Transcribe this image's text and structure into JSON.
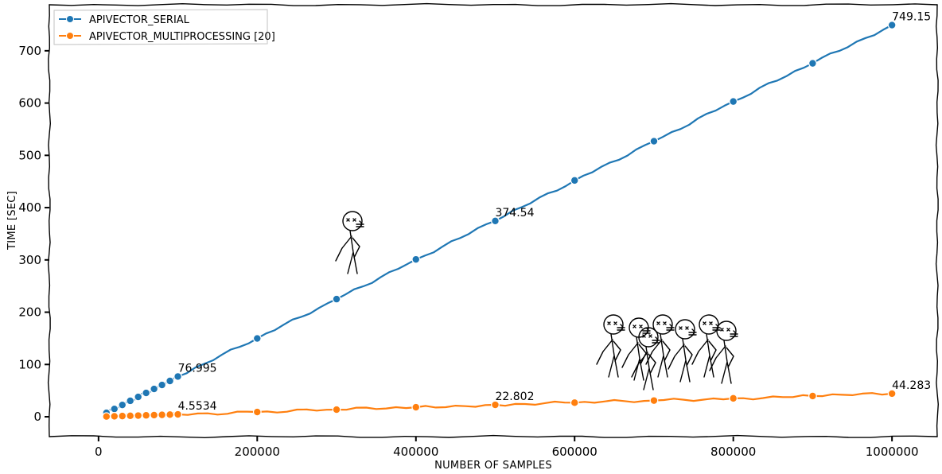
{
  "chart_data": {
    "type": "line",
    "xlabel": "NUMBER OF SAMPLES",
    "ylabel": "TIME [SEC]",
    "xlim": [
      -62000,
      1057000
    ],
    "ylim": [
      -38,
      788
    ],
    "xticks": [
      0,
      200000,
      400000,
      600000,
      800000,
      1000000
    ],
    "xtick_labels": [
      "0",
      "200000",
      "400000",
      "600000",
      "800000",
      "1000000"
    ],
    "yticks": [
      0,
      100,
      200,
      300,
      400,
      500,
      600,
      700
    ],
    "ytick_labels": [
      "0",
      "100",
      "200",
      "300",
      "400",
      "500",
      "600",
      "700"
    ],
    "grid": false,
    "legend_position": "top-left",
    "style": "xkcd",
    "x": [
      10000,
      20000,
      30000,
      40000,
      50000,
      60000,
      70000,
      80000,
      90000,
      100000,
      200000,
      300000,
      400000,
      500000,
      600000,
      700000,
      800000,
      900000,
      1000000
    ],
    "series": [
      {
        "name": "APIVECTOR_SERIAL",
        "color": "#1f77b4",
        "values": [
          7.5,
          15,
          22.6,
          30.5,
          38,
          45.6,
          53.2,
          60.8,
          68.5,
          76.995,
          149.8,
          225,
          301,
          374.54,
          452,
          527,
          603,
          676,
          749.15
        ]
      },
      {
        "name": "APIVECTOR_MULTIPROCESSING [20]",
        "color": "#ff7f0e",
        "values": [
          0.46,
          0.91,
          1.37,
          1.82,
          2.28,
          2.73,
          3.19,
          3.64,
          4.1,
          4.5534,
          9.1,
          13.6,
          18.2,
          22.802,
          26.9,
          31.0,
          35.2,
          39.7,
          44.283
        ]
      }
    ],
    "annotations": [
      {
        "text": "76.995",
        "x": 100000,
        "y": 76.995,
        "series": 0
      },
      {
        "text": "374.54",
        "x": 500000,
        "y": 374.54,
        "series": 0
      },
      {
        "text": "749.15",
        "x": 1000000,
        "y": 749.15,
        "series": 0
      },
      {
        "text": "4.5534",
        "x": 100000,
        "y": 4.5534,
        "series": 1
      },
      {
        "text": "22.802",
        "x": 500000,
        "y": 22.802,
        "series": 1
      },
      {
        "text": "44.283",
        "x": 1000000,
        "y": 44.283,
        "series": 1
      }
    ]
  }
}
